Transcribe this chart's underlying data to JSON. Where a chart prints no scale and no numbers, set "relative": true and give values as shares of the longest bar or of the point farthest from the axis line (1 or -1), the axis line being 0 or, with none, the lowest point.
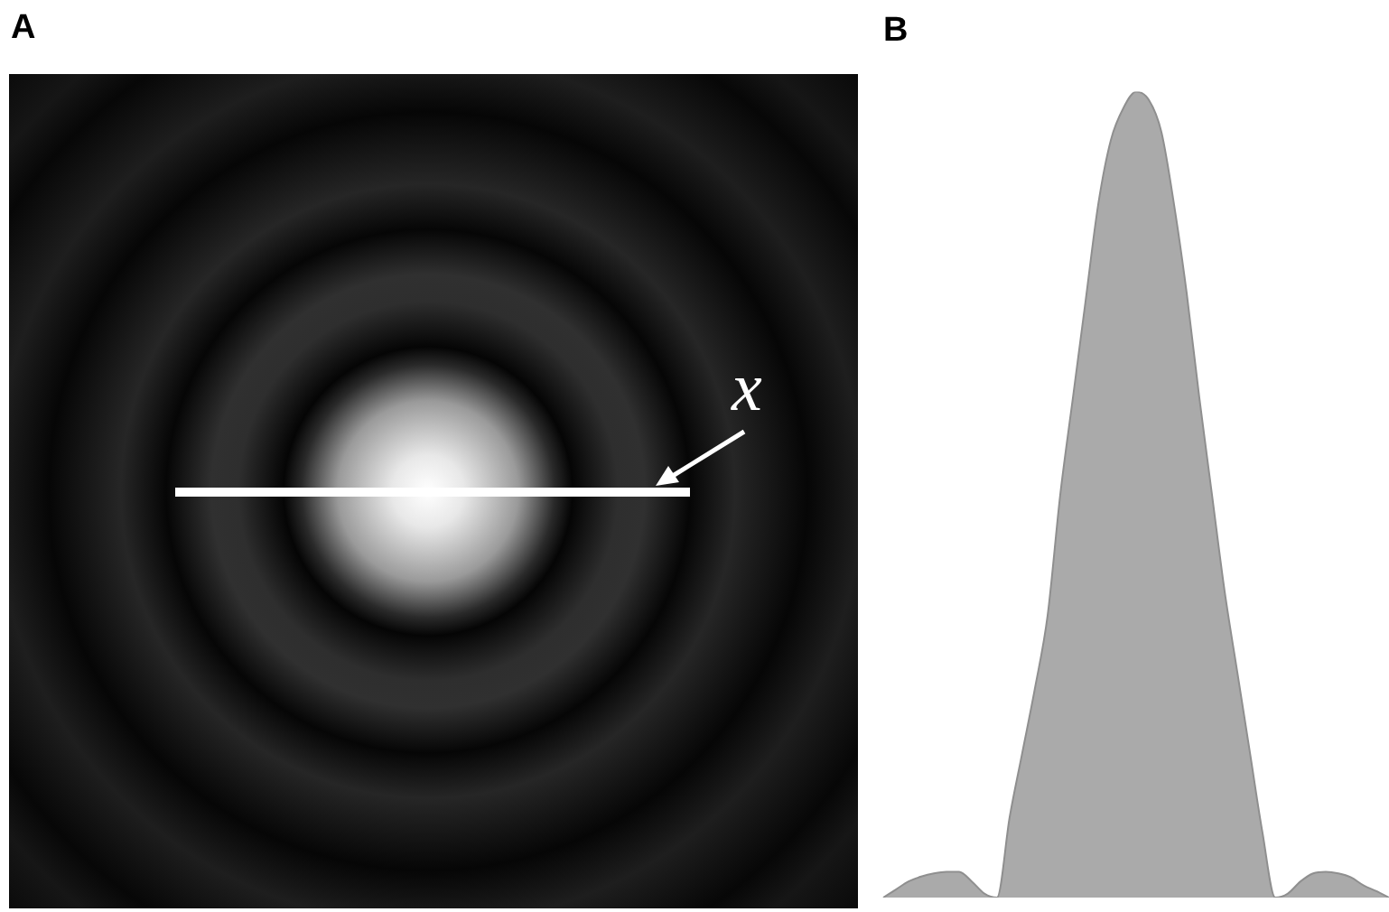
{
  "chart_data": [
    {
      "type": "other",
      "title": "A",
      "annotations": [
        "x"
      ]
    },
    {
      "type": "area",
      "title": "B",
      "relative": true,
      "color": "#aaaaaa",
      "categories": [
        null,
        null,
        null,
        null,
        null,
        null,
        null,
        null,
        null,
        null,
        null,
        null,
        null,
        null,
        null,
        null,
        null,
        null,
        null,
        null,
        null,
        null,
        null,
        null,
        null,
        null,
        null,
        null,
        null,
        null,
        null,
        null,
        null,
        null,
        null,
        null,
        null,
        null,
        null,
        null,
        null
      ],
      "values": [
        0,
        0.01,
        0.02,
        0.026,
        0.03,
        0.032,
        0.032,
        0.02,
        0.005,
        0,
        0.1,
        0.18,
        0.26,
        0.35,
        0.5,
        0.62,
        0.74,
        0.86,
        0.94,
        0.98,
        1,
        0.99,
        0.95,
        0.86,
        0.75,
        0.62,
        0.5,
        0.38,
        0.28,
        0.18,
        0.08,
        0,
        0.005,
        0.02,
        0.03,
        0.032,
        0.03,
        0.025,
        0.015,
        0.008,
        0
      ]
    }
  ]
}
